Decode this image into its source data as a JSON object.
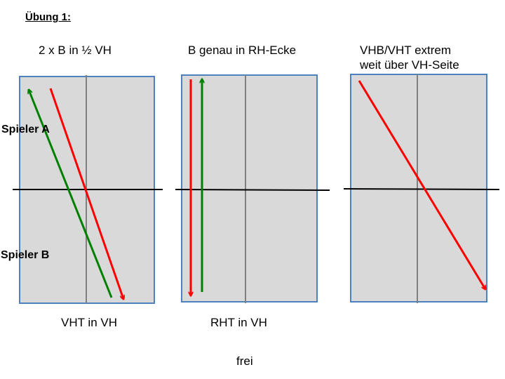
{
  "title": "Übung 1:",
  "players": {
    "a": "Spieler A",
    "b": "Spieler B"
  },
  "courts": [
    {
      "heading": "2 x B in ½ VH",
      "caption": "VHT in VH"
    },
    {
      "heading": "B genau in RH-Ecke",
      "caption": "RHT in VH"
    },
    {
      "heading_lines": [
        "VHB/VHT extrem",
        "weit über VH-Seite"
      ],
      "caption": ""
    }
  ],
  "footer": "frei",
  "colors": {
    "court_fill": "#d9d9d9",
    "court_border": "#4f81bd",
    "center_line": "#808080",
    "net": "#000000",
    "arrow_red": "#ff0000",
    "arrow_green": "#008000"
  }
}
